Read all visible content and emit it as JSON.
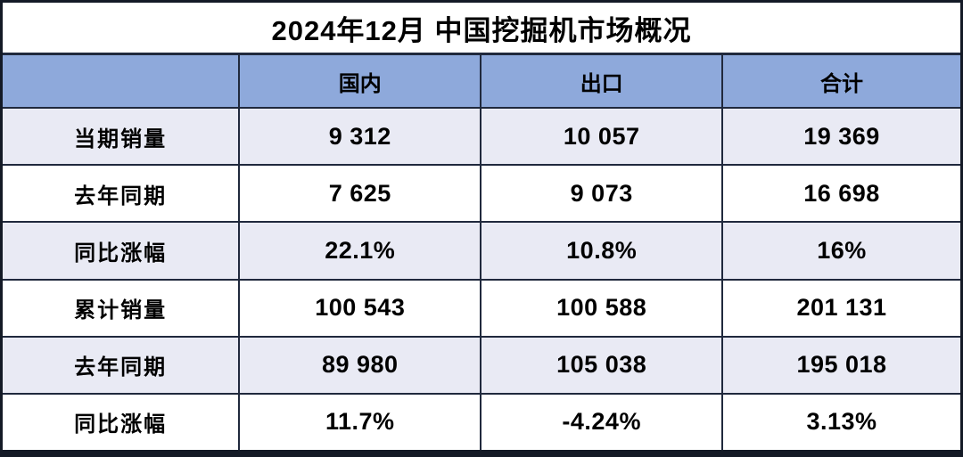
{
  "chart_data": {
    "type": "table",
    "title": "2024年12月 中国挖掘机市场概况",
    "columns": [
      "",
      "国内",
      "出口",
      "合计"
    ],
    "rows": [
      {
        "label": "当期销量",
        "values": [
          "9 312",
          "10 057",
          "19 369"
        ]
      },
      {
        "label": "去年同期",
        "values": [
          "7 625",
          "9 073",
          "16 698"
        ]
      },
      {
        "label": "同比涨幅",
        "values": [
          "22.1%",
          "10.8%",
          "16%"
        ]
      },
      {
        "label": "累计销量",
        "values": [
          "100 543",
          "100 588",
          "201 131"
        ]
      },
      {
        "label": "去年同期",
        "values": [
          "89 980",
          "105 038",
          "195 018"
        ]
      },
      {
        "label": "同比涨幅",
        "values": [
          "11.7%",
          "-4.24%",
          "3.13%"
        ]
      }
    ],
    "layout_hints": {
      "row_label_column_first": true,
      "alternating_row_shading": true,
      "all_text_bold_centered": true
    }
  },
  "colors": {
    "header_bg": "#8EA9DB",
    "alt_row_bg": "#E9EAF4",
    "row_bg": "#FFFFFF",
    "grid_line": "#20293D",
    "outer_border": "#141A26",
    "text": "#000000"
  }
}
